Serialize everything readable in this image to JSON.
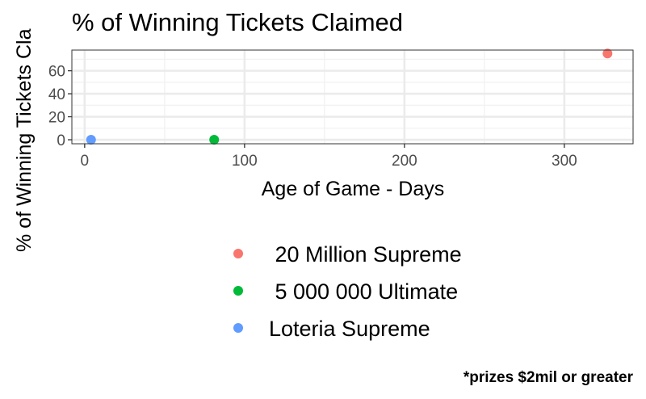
{
  "chart_data": {
    "type": "scatter",
    "title": "% of Winning Tickets Claimed",
    "xlabel": "Age of Game - Days",
    "ylabel": "% of Winning Tickets Cla",
    "xlim": [
      -8,
      343
    ],
    "ylim": [
      -3.5,
      78
    ],
    "xticks": [
      0,
      100,
      200,
      300
    ],
    "xtick_labels": [
      "0",
      "100",
      "200",
      "300"
    ],
    "yticks": [
      0,
      20,
      40,
      60
    ],
    "ytick_labels": [
      "0",
      "20",
      "40",
      "60"
    ],
    "grid": true,
    "legend_position": "bottom",
    "series": [
      {
        "name": " 20 Million Supreme",
        "color": "#F8766D",
        "points": [
          {
            "x": 327,
            "y": 75
          }
        ]
      },
      {
        "name": " 5 000 000 Ultimate",
        "color": "#00BA38",
        "points": [
          {
            "x": 81,
            "y": 0
          }
        ]
      },
      {
        "name": "Loteria Supreme",
        "color": "#619CFF",
        "points": [
          {
            "x": 4,
            "y": 0
          }
        ]
      }
    ],
    "caption": "*prizes $2mil or greater"
  }
}
